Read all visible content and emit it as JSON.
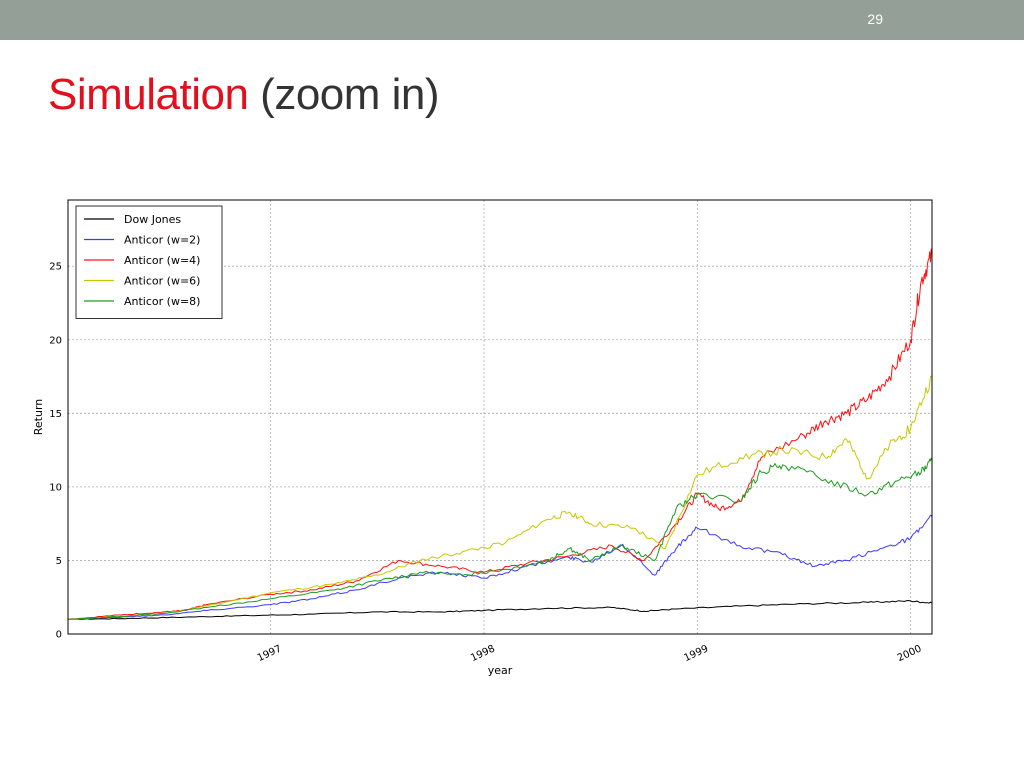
{
  "slide": {
    "number": "29",
    "title_main": "Simulation",
    "title_rest": " (zoom in)"
  },
  "colors": {
    "topbar": "#939f97",
    "title_accent": "#e0101c",
    "title_text": "#333333"
  },
  "chart_data": {
    "type": "line",
    "title": "",
    "xlabel": "year",
    "ylabel": "Return",
    "xlim": [
      1996.05,
      2000.1
    ],
    "ylim": [
      0,
      29.5
    ],
    "x_ticks": [
      {
        "value": 1997,
        "label": "1997"
      },
      {
        "value": 1998,
        "label": "1998"
      },
      {
        "value": 1999,
        "label": "1999"
      },
      {
        "value": 2000,
        "label": "2000"
      }
    ],
    "y_ticks": [
      {
        "value": 0,
        "label": "0"
      },
      {
        "value": 5,
        "label": "5"
      },
      {
        "value": 10,
        "label": "10"
      },
      {
        "value": 15,
        "label": "15"
      },
      {
        "value": 20,
        "label": "20"
      },
      {
        "value": 25,
        "label": "25"
      }
    ],
    "grid": true,
    "legend_position": "top-left",
    "series": [
      {
        "name": "Dow Jones",
        "color": "#000000",
        "points": [
          [
            1996.05,
            1.0
          ],
          [
            1996.3,
            1.05
          ],
          [
            1996.6,
            1.15
          ],
          [
            1996.9,
            1.25
          ],
          [
            1997.2,
            1.35
          ],
          [
            1997.5,
            1.5
          ],
          [
            1997.8,
            1.5
          ],
          [
            1998.0,
            1.6
          ],
          [
            1998.3,
            1.75
          ],
          [
            1998.6,
            1.8
          ],
          [
            1998.75,
            1.55
          ],
          [
            1998.9,
            1.7
          ],
          [
            1999.2,
            1.9
          ],
          [
            1999.5,
            2.05
          ],
          [
            1999.8,
            2.15
          ],
          [
            2000.0,
            2.25
          ],
          [
            2000.1,
            2.1
          ]
        ]
      },
      {
        "name": "Anticor (w=2)",
        "color": "#3a3aff",
        "points": [
          [
            1996.05,
            1.0
          ],
          [
            1996.3,
            1.15
          ],
          [
            1996.5,
            1.3
          ],
          [
            1996.7,
            1.6
          ],
          [
            1997.0,
            2.0
          ],
          [
            1997.2,
            2.4
          ],
          [
            1997.4,
            3.0
          ],
          [
            1997.6,
            3.8
          ],
          [
            1997.8,
            4.2
          ],
          [
            1998.0,
            3.8
          ],
          [
            1998.2,
            4.6
          ],
          [
            1998.4,
            5.2
          ],
          [
            1998.5,
            4.9
          ],
          [
            1998.65,
            6.1
          ],
          [
            1998.8,
            4.0
          ],
          [
            1998.9,
            5.8
          ],
          [
            1999.0,
            7.2
          ],
          [
            1999.2,
            6.0
          ],
          [
            1999.4,
            5.4
          ],
          [
            1999.55,
            4.6
          ],
          [
            1999.7,
            5.0
          ],
          [
            1999.9,
            6.0
          ],
          [
            2000.0,
            6.5
          ],
          [
            2000.1,
            8.0
          ]
        ]
      },
      {
        "name": "Anticor (w=4)",
        "color": "#ff1010",
        "points": [
          [
            1996.05,
            1.0
          ],
          [
            1996.3,
            1.3
          ],
          [
            1996.5,
            1.5
          ],
          [
            1996.6,
            1.6
          ],
          [
            1996.7,
            2.0
          ],
          [
            1997.0,
            2.7
          ],
          [
            1997.2,
            3.0
          ],
          [
            1997.4,
            3.6
          ],
          [
            1997.6,
            5.0
          ],
          [
            1997.8,
            4.6
          ],
          [
            1998.0,
            4.2
          ],
          [
            1998.2,
            4.8
          ],
          [
            1998.4,
            5.3
          ],
          [
            1998.6,
            6.0
          ],
          [
            1998.75,
            5.0
          ],
          [
            1998.9,
            7.5
          ],
          [
            1999.0,
            9.5
          ],
          [
            1999.1,
            8.5
          ],
          [
            1999.2,
            9.0
          ],
          [
            1999.3,
            12.0
          ],
          [
            1999.5,
            13.5
          ],
          [
            1999.6,
            14.5
          ],
          [
            1999.7,
            15.0
          ],
          [
            1999.8,
            16.0
          ],
          [
            1999.9,
            17.5
          ],
          [
            2000.0,
            20.0
          ],
          [
            2000.05,
            24.0
          ],
          [
            2000.1,
            25.8
          ]
        ]
      },
      {
        "name": "Anticor (w=6)",
        "color": "#c8c800",
        "points": [
          [
            1996.05,
            1.0
          ],
          [
            1996.3,
            1.2
          ],
          [
            1996.5,
            1.4
          ],
          [
            1996.7,
            1.9
          ],
          [
            1997.0,
            2.8
          ],
          [
            1997.3,
            3.4
          ],
          [
            1997.5,
            4.0
          ],
          [
            1997.7,
            5.0
          ],
          [
            1997.9,
            5.6
          ],
          [
            1998.1,
            6.2
          ],
          [
            1998.3,
            7.8
          ],
          [
            1998.4,
            8.3
          ],
          [
            1998.5,
            7.5
          ],
          [
            1998.7,
            7.2
          ],
          [
            1998.85,
            5.8
          ],
          [
            1999.0,
            10.8
          ],
          [
            1999.2,
            12.0
          ],
          [
            1999.4,
            12.5
          ],
          [
            1999.6,
            12.0
          ],
          [
            1999.7,
            13.2
          ],
          [
            1999.8,
            10.6
          ],
          [
            1999.9,
            12.8
          ],
          [
            2000.0,
            14.0
          ],
          [
            2000.1,
            17.5
          ]
        ]
      },
      {
        "name": "Anticor (w=8)",
        "color": "#1e9a1e",
        "points": [
          [
            1996.05,
            1.0
          ],
          [
            1996.3,
            1.2
          ],
          [
            1996.5,
            1.4
          ],
          [
            1996.7,
            1.8
          ],
          [
            1997.0,
            2.4
          ],
          [
            1997.3,
            3.0
          ],
          [
            1997.5,
            3.6
          ],
          [
            1997.7,
            4.2
          ],
          [
            1997.9,
            4.0
          ],
          [
            1998.1,
            4.4
          ],
          [
            1998.3,
            5.0
          ],
          [
            1998.4,
            5.8
          ],
          [
            1998.5,
            5.0
          ],
          [
            1998.65,
            6.0
          ],
          [
            1998.8,
            5.0
          ],
          [
            1998.9,
            8.5
          ],
          [
            1999.0,
            9.5
          ],
          [
            1999.2,
            9.0
          ],
          [
            1999.3,
            11.0
          ],
          [
            1999.4,
            11.5
          ],
          [
            1999.6,
            10.5
          ],
          [
            1999.8,
            9.5
          ],
          [
            1999.95,
            10.5
          ],
          [
            2000.05,
            11.0
          ],
          [
            2000.1,
            11.8
          ]
        ]
      }
    ]
  }
}
